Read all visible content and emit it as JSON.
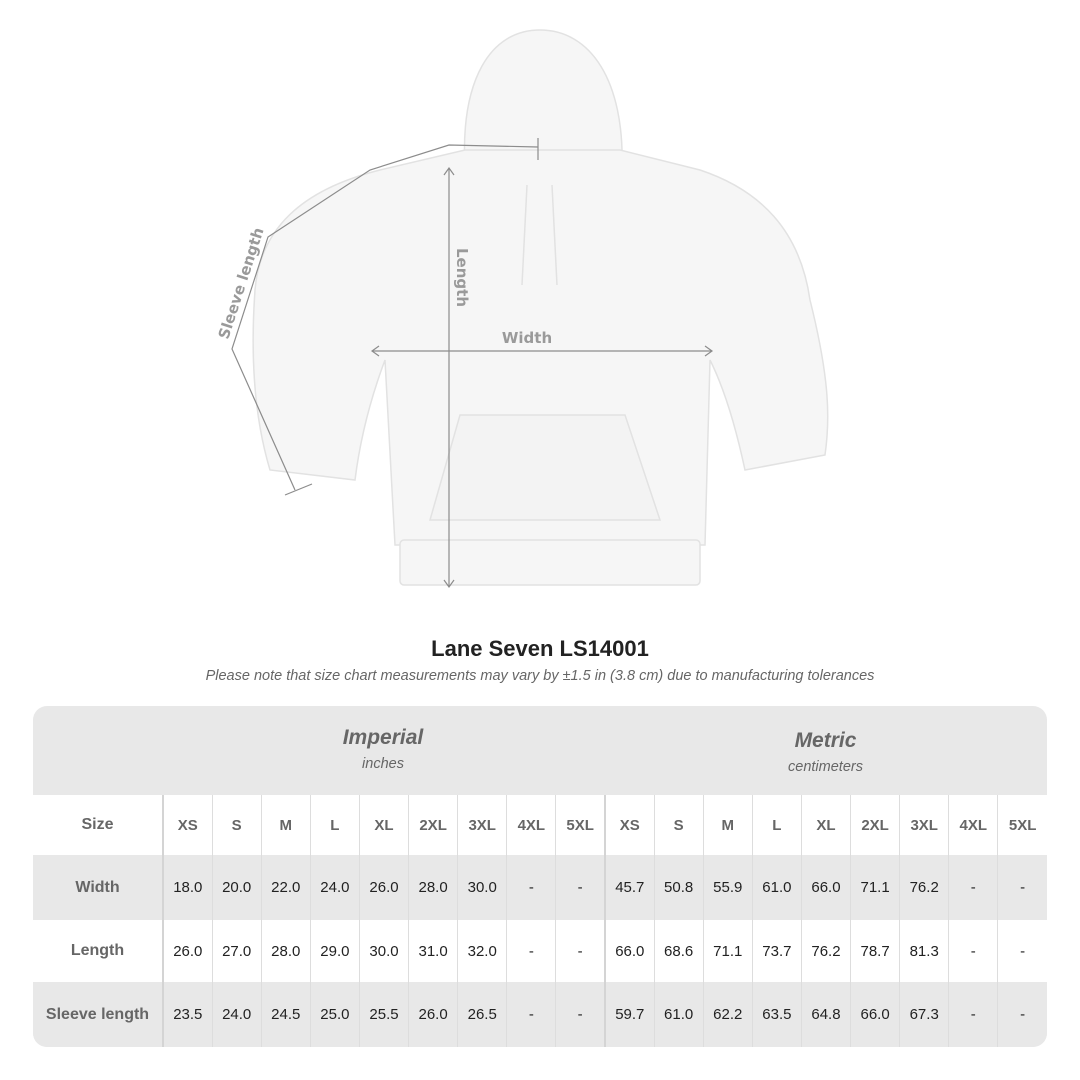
{
  "diagram": {
    "sleeve_label": "Sleeve length",
    "length_label": "Length",
    "width_label": "Width"
  },
  "title": "Lane Seven LS14001",
  "note": "Please note that size chart measurements may vary by ±1.5 in (3.8 cm) due to manufacturing tolerances",
  "imperial": {
    "name": "Imperial",
    "unit": "inches"
  },
  "metric": {
    "name": "Metric",
    "unit": "centimeters"
  },
  "size_label": "Size",
  "sizes": [
    "XS",
    "S",
    "M",
    "L",
    "XL",
    "2XL",
    "3XL",
    "4XL",
    "5XL"
  ],
  "rows": [
    {
      "label": "Width",
      "imperial": [
        "18.0",
        "20.0",
        "22.0",
        "24.0",
        "26.0",
        "28.0",
        "30.0",
        "-",
        "-"
      ],
      "metric": [
        "45.7",
        "50.8",
        "55.9",
        "61.0",
        "66.0",
        "71.1",
        "76.2",
        "-",
        "-"
      ]
    },
    {
      "label": "Length",
      "imperial": [
        "26.0",
        "27.0",
        "28.0",
        "29.0",
        "30.0",
        "31.0",
        "32.0",
        "-",
        "-"
      ],
      "metric": [
        "66.0",
        "68.6",
        "71.1",
        "73.7",
        "76.2",
        "78.7",
        "81.3",
        "-",
        "-"
      ]
    },
    {
      "label": "Sleeve length",
      "imperial": [
        "23.5",
        "24.0",
        "24.5",
        "25.0",
        "25.5",
        "26.0",
        "26.5",
        "-",
        "-"
      ],
      "metric": [
        "59.7",
        "61.0",
        "62.2",
        "63.5",
        "64.8",
        "66.0",
        "67.3",
        "-",
        "-"
      ]
    }
  ]
}
